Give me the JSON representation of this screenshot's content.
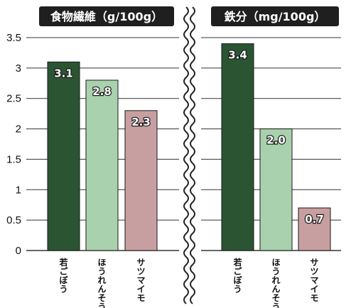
{
  "colors": {
    "wakagobou": "#2b5532",
    "hourensou": "#a9d1ad",
    "satsumaimo": "#c89fa0",
    "title_bg": "#1f1f1f",
    "grid": "#333333"
  },
  "chart_data": [
    {
      "type": "bar",
      "title": "食物繊維（g/100g）",
      "categories": [
        "若ごぼう",
        "ほうれんそう",
        "サツマイモ"
      ],
      "values": [
        3.1,
        2.8,
        2.3
      ],
      "value_labels": [
        "3.1",
        "2.8",
        "2.3"
      ],
      "ylim": [
        0,
        3.5
      ],
      "yticks": [
        0,
        0.5,
        1,
        1.5,
        2,
        2.5,
        3,
        3.5
      ],
      "ytick_labels": [
        "0",
        "0.5",
        "1",
        "1.5",
        "2",
        "2.5",
        "3",
        "3.5"
      ],
      "grid": true
    },
    {
      "type": "bar",
      "title": "鉄分（mg/100g）",
      "categories": [
        "若ごぼう",
        "ほうれんそう",
        "サツマイモ"
      ],
      "values": [
        3.4,
        2.0,
        0.7
      ],
      "value_labels": [
        "3.4",
        "2.0",
        "0.7"
      ],
      "ylim": [
        0,
        3.5
      ],
      "yticks": [
        0,
        0.5,
        1,
        1.5,
        2,
        2.5,
        3,
        3.5
      ],
      "grid": true
    }
  ]
}
